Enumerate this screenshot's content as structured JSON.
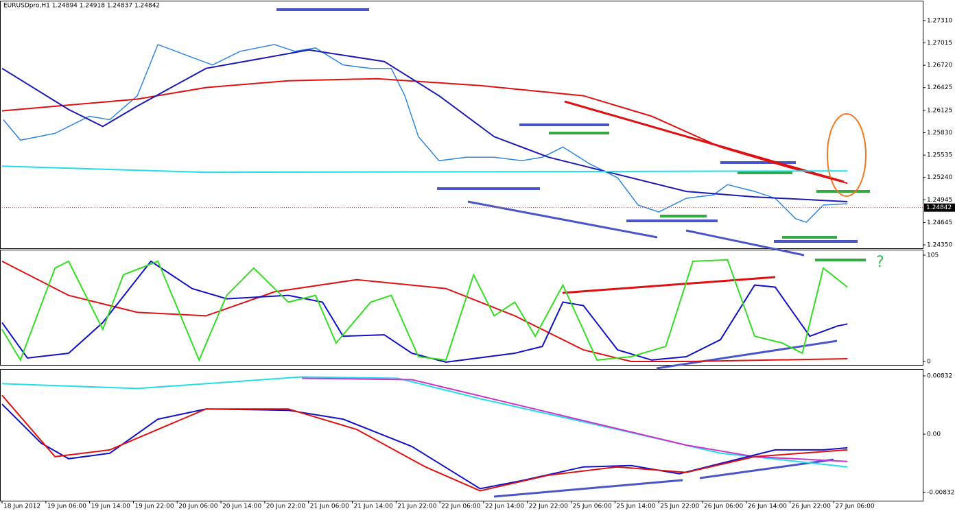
{
  "chart_data": [
    {
      "type": "line",
      "title": "EURUSDpro,H1  1.24894 1.24918 1.24837 1.24842",
      "xlim": [
        0,
        21.03
      ],
      "ylim": [
        1.24305,
        1.27563
      ],
      "yticks": [
        {
          "value": 1.2731,
          "label": "1.27310"
        },
        1.27015,
        {
          "value": 1.2672,
          "label": "1.26720"
        },
        1.26425,
        1.26125,
        {
          "value": 1.2583,
          "label": "1.25830"
        },
        1.25535,
        {
          "value": 1.2524,
          "label": "1.25240"
        },
        1.24945,
        1.24645,
        {
          "value": 1.2435,
          "label": "1.24350"
        }
      ],
      "last_price": 1.24842,
      "series": [
        {
          "color": "#2f86de",
          "x": [
            0.03,
            0.42,
            1.21,
            1.99,
            2.46,
            3.09,
            3.56,
            4.18,
            4.81,
            5.44,
            6.22,
            6.69,
            7.16,
            7.79,
            8.42,
            8.89,
            9.2,
            9.51,
            9.98,
            10.61,
            11.24,
            11.87,
            12.34,
            12.81,
            13.43,
            14.06,
            14.53,
            15.0,
            15.63,
            16.25,
            16.57,
            17.19,
            17.66,
            18.13,
            18.37,
            18.76,
            19.31
          ],
          "values": [
            1.26002,
            1.25731,
            1.25822,
            1.26047,
            1.26002,
            1.26318,
            1.26994,
            1.26859,
            1.26724,
            1.26904,
            1.26994,
            1.26904,
            1.26949,
            1.26724,
            1.26679,
            1.26679,
            1.26318,
            1.25777,
            1.25461,
            1.25506,
            1.25506,
            1.25461,
            1.25506,
            1.25641,
            1.25416,
            1.25235,
            1.24875,
            1.24784,
            1.24965,
            1.2501,
            1.25145,
            1.25055,
            1.24965,
            1.24694,
            1.24649,
            1.24875,
            1.24893
          ]
        },
        {
          "color": "#e01010",
          "x": [
            0,
            3.09,
            4.66,
            6.54,
            8.57,
            10.92,
            13.28,
            14.84,
            16.41,
            17.98,
            19.31
          ],
          "values": [
            1.26119,
            1.26273,
            1.26426,
            1.26516,
            1.26543,
            1.26453,
            1.26318,
            1.26047,
            1.25641,
            1.25371,
            1.25163
          ]
        },
        {
          "color": "#1a1ab4",
          "x": [
            0,
            1.52,
            2.3,
            3.09,
            4.66,
            7.01,
            8.73,
            9.98,
            11.24,
            12.49,
            14.06,
            15.63,
            17.19,
            19.31
          ],
          "values": [
            1.26679,
            1.26137,
            1.25912,
            1.26182,
            1.26679,
            1.26922,
            1.26769,
            1.26318,
            1.25777,
            1.25506,
            1.2528,
            1.25055,
            1.24983,
            1.2492
          ]
        },
        {
          "color": "#22dde8",
          "x": [
            0,
            4.66,
            19.31
          ],
          "values": [
            1.25389,
            1.25308,
            1.25326
          ]
        }
      ]
    },
    {
      "type": "line",
      "xlim": [
        0,
        21.03
      ],
      "ylim": [
        -3.4,
        109.7
      ],
      "yticks": [
        0,
        105
      ],
      "annotations": [
        "?"
      ],
      "series": [
        {
          "color": "#e01010",
          "x": [
            0,
            1.52,
            3.09,
            4.66,
            6.22,
            8.1,
            10.14,
            11.71,
            13.28,
            14.37,
            15.63,
            19.31
          ],
          "values": [
            98.9,
            65.3,
            48.5,
            45.1,
            68.7,
            80.8,
            72.0,
            45.1,
            11.4,
            0.0,
            0.0,
            2.7
          ]
        },
        {
          "color": "#1010c8",
          "x": [
            0,
            0.58,
            1.52,
            2.3,
            3.4,
            4.34,
            5.13,
            6.54,
            7.32,
            7.79,
            8.73,
            9.36,
            10.14,
            11.71,
            12.34,
            12.81,
            13.28,
            14.06,
            14.84,
            15.63,
            16.41,
            17.19,
            17.66,
            18.45,
            19.08,
            19.31
          ],
          "values": [
            38.4,
            3.4,
            8.1,
            38.4,
            98.9,
            72.0,
            61.9,
            65.3,
            58.6,
            24.9,
            26.3,
            8.1,
            -0.7,
            8.1,
            14.8,
            58.6,
            55.2,
            11.4,
            1.4,
            4.7,
            21.5,
            75.4,
            73.4,
            24.9,
            35.0,
            37.0
          ]
        },
        {
          "color": "#33dd22",
          "x": [
            0,
            0.42,
            1.21,
            1.52,
            2.3,
            2.77,
            3.56,
            4.5,
            5.13,
            5.75,
            6.54,
            7.16,
            7.63,
            8.42,
            8.89,
            9.51,
            10.14,
            10.77,
            11.24,
            11.71,
            12.18,
            12.81,
            13.59,
            14.37,
            15.16,
            15.78,
            16.57,
            17.19,
            17.82,
            18.28,
            18.76,
            19.31
          ],
          "values": [
            31.6,
            1.4,
            92.2,
            98.9,
            31.6,
            85.5,
            98.9,
            1.4,
            65.3,
            92.2,
            58.6,
            65.3,
            18.2,
            58.6,
            65.3,
            4.7,
            1.4,
            85.5,
            45.1,
            58.6,
            24.9,
            75.4,
            1.4,
            4.7,
            14.8,
            98.9,
            100.3,
            24.9,
            18.2,
            8.1,
            92.2,
            73.4
          ]
        }
      ]
    },
    {
      "type": "line",
      "xlim": [
        0,
        21.03
      ],
      "ylim": [
        -0.00949,
        0.0092
      ],
      "yticks": [
        0.00832,
        {
          "value": 0,
          "label": "0.00"
        },
        -0.00832
      ],
      "xticks": [
        {
          "value": 0,
          "label": "18 Jun 2012"
        },
        {
          "value": 1,
          "label": "19 Jun 06:00"
        },
        {
          "value": 2,
          "label": "19 Jun 14:00"
        },
        {
          "value": 3,
          "label": "19 Jun 22:00"
        },
        {
          "value": 4,
          "label": "20 Jun 06:00"
        },
        {
          "value": 5,
          "label": "20 Jun 14:00"
        },
        {
          "value": 6,
          "label": "20 Jun 22:00"
        },
        {
          "value": 7,
          "label": "21 Jun 06:00"
        },
        {
          "value": 8,
          "label": "21 Jun 14:00"
        },
        {
          "value": 9,
          "label": "21 Jun 22:00"
        },
        {
          "value": 10,
          "label": "22 Jun 06:00"
        },
        {
          "value": 11,
          "label": "22 Jun 14:00"
        },
        {
          "value": 12,
          "label": "22 Jun 22:00"
        },
        {
          "value": 13,
          "label": "25 Jun 06:00"
        },
        {
          "value": 14,
          "label": "25 Jun 14:00"
        },
        {
          "value": 15,
          "label": "25 Jun 22:00"
        },
        {
          "value": 16,
          "label": "26 Jun 06:00"
        },
        {
          "value": 17,
          "label": "26 Jun 14:00"
        },
        {
          "value": 18,
          "label": "26 Jun 22:00"
        },
        {
          "value": 19,
          "label": "27 Jun 06:00"
        }
      ],
      "series": [
        {
          "color": "#22dde8",
          "x": [
            0,
            3.09,
            6.85,
            9.04,
            10.92,
            14.06,
            16.41,
            19.31
          ],
          "values": [
            0.0072,
            0.00652,
            0.00817,
            0.00798,
            0.00506,
            0.00068,
            -0.00272,
            -0.00467
          ]
        },
        {
          "color": "#cc33cc",
          "x": [
            6.85,
            9.36,
            12.49,
            15.63,
            17.19,
            19.31
          ],
          "values": [
            0.00798,
            0.00778,
            0.00311,
            -0.00156,
            -0.00321,
            -0.00389
          ]
        },
        {
          "color": "#1010c8",
          "x": [
            0,
            0.89,
            1.52,
            2.46,
            3.56,
            4.66,
            6.54,
            7.79,
            9.36,
            10.92,
            11.87,
            13.28,
            14.37,
            15.47,
            16.41,
            17.66,
            18.76,
            19.31
          ],
          "values": [
            0.00428,
            -0.00126,
            -0.0035,
            -0.00272,
            0.00214,
            0.0036,
            0.00341,
            0.00214,
            -0.00175,
            -0.00778,
            -0.00662,
            -0.00467,
            -0.00448,
            -0.00564,
            -0.00418,
            -0.00224,
            -0.00224,
            -0.00195
          ]
        },
        {
          "color": "#e01010",
          "x": [
            0,
            1.21,
            2.46,
            4.66,
            6.54,
            8.1,
            9.67,
            10.92,
            12.49,
            14.06,
            15.63,
            17.19,
            19.31
          ],
          "values": [
            0.00555,
            -0.00321,
            -0.00224,
            0.0036,
            0.0036,
            0.00068,
            -0.00467,
            -0.00808,
            -0.00584,
            -0.00467,
            -0.00545,
            -0.00321,
            -0.00224
          ]
        }
      ]
    }
  ]
}
